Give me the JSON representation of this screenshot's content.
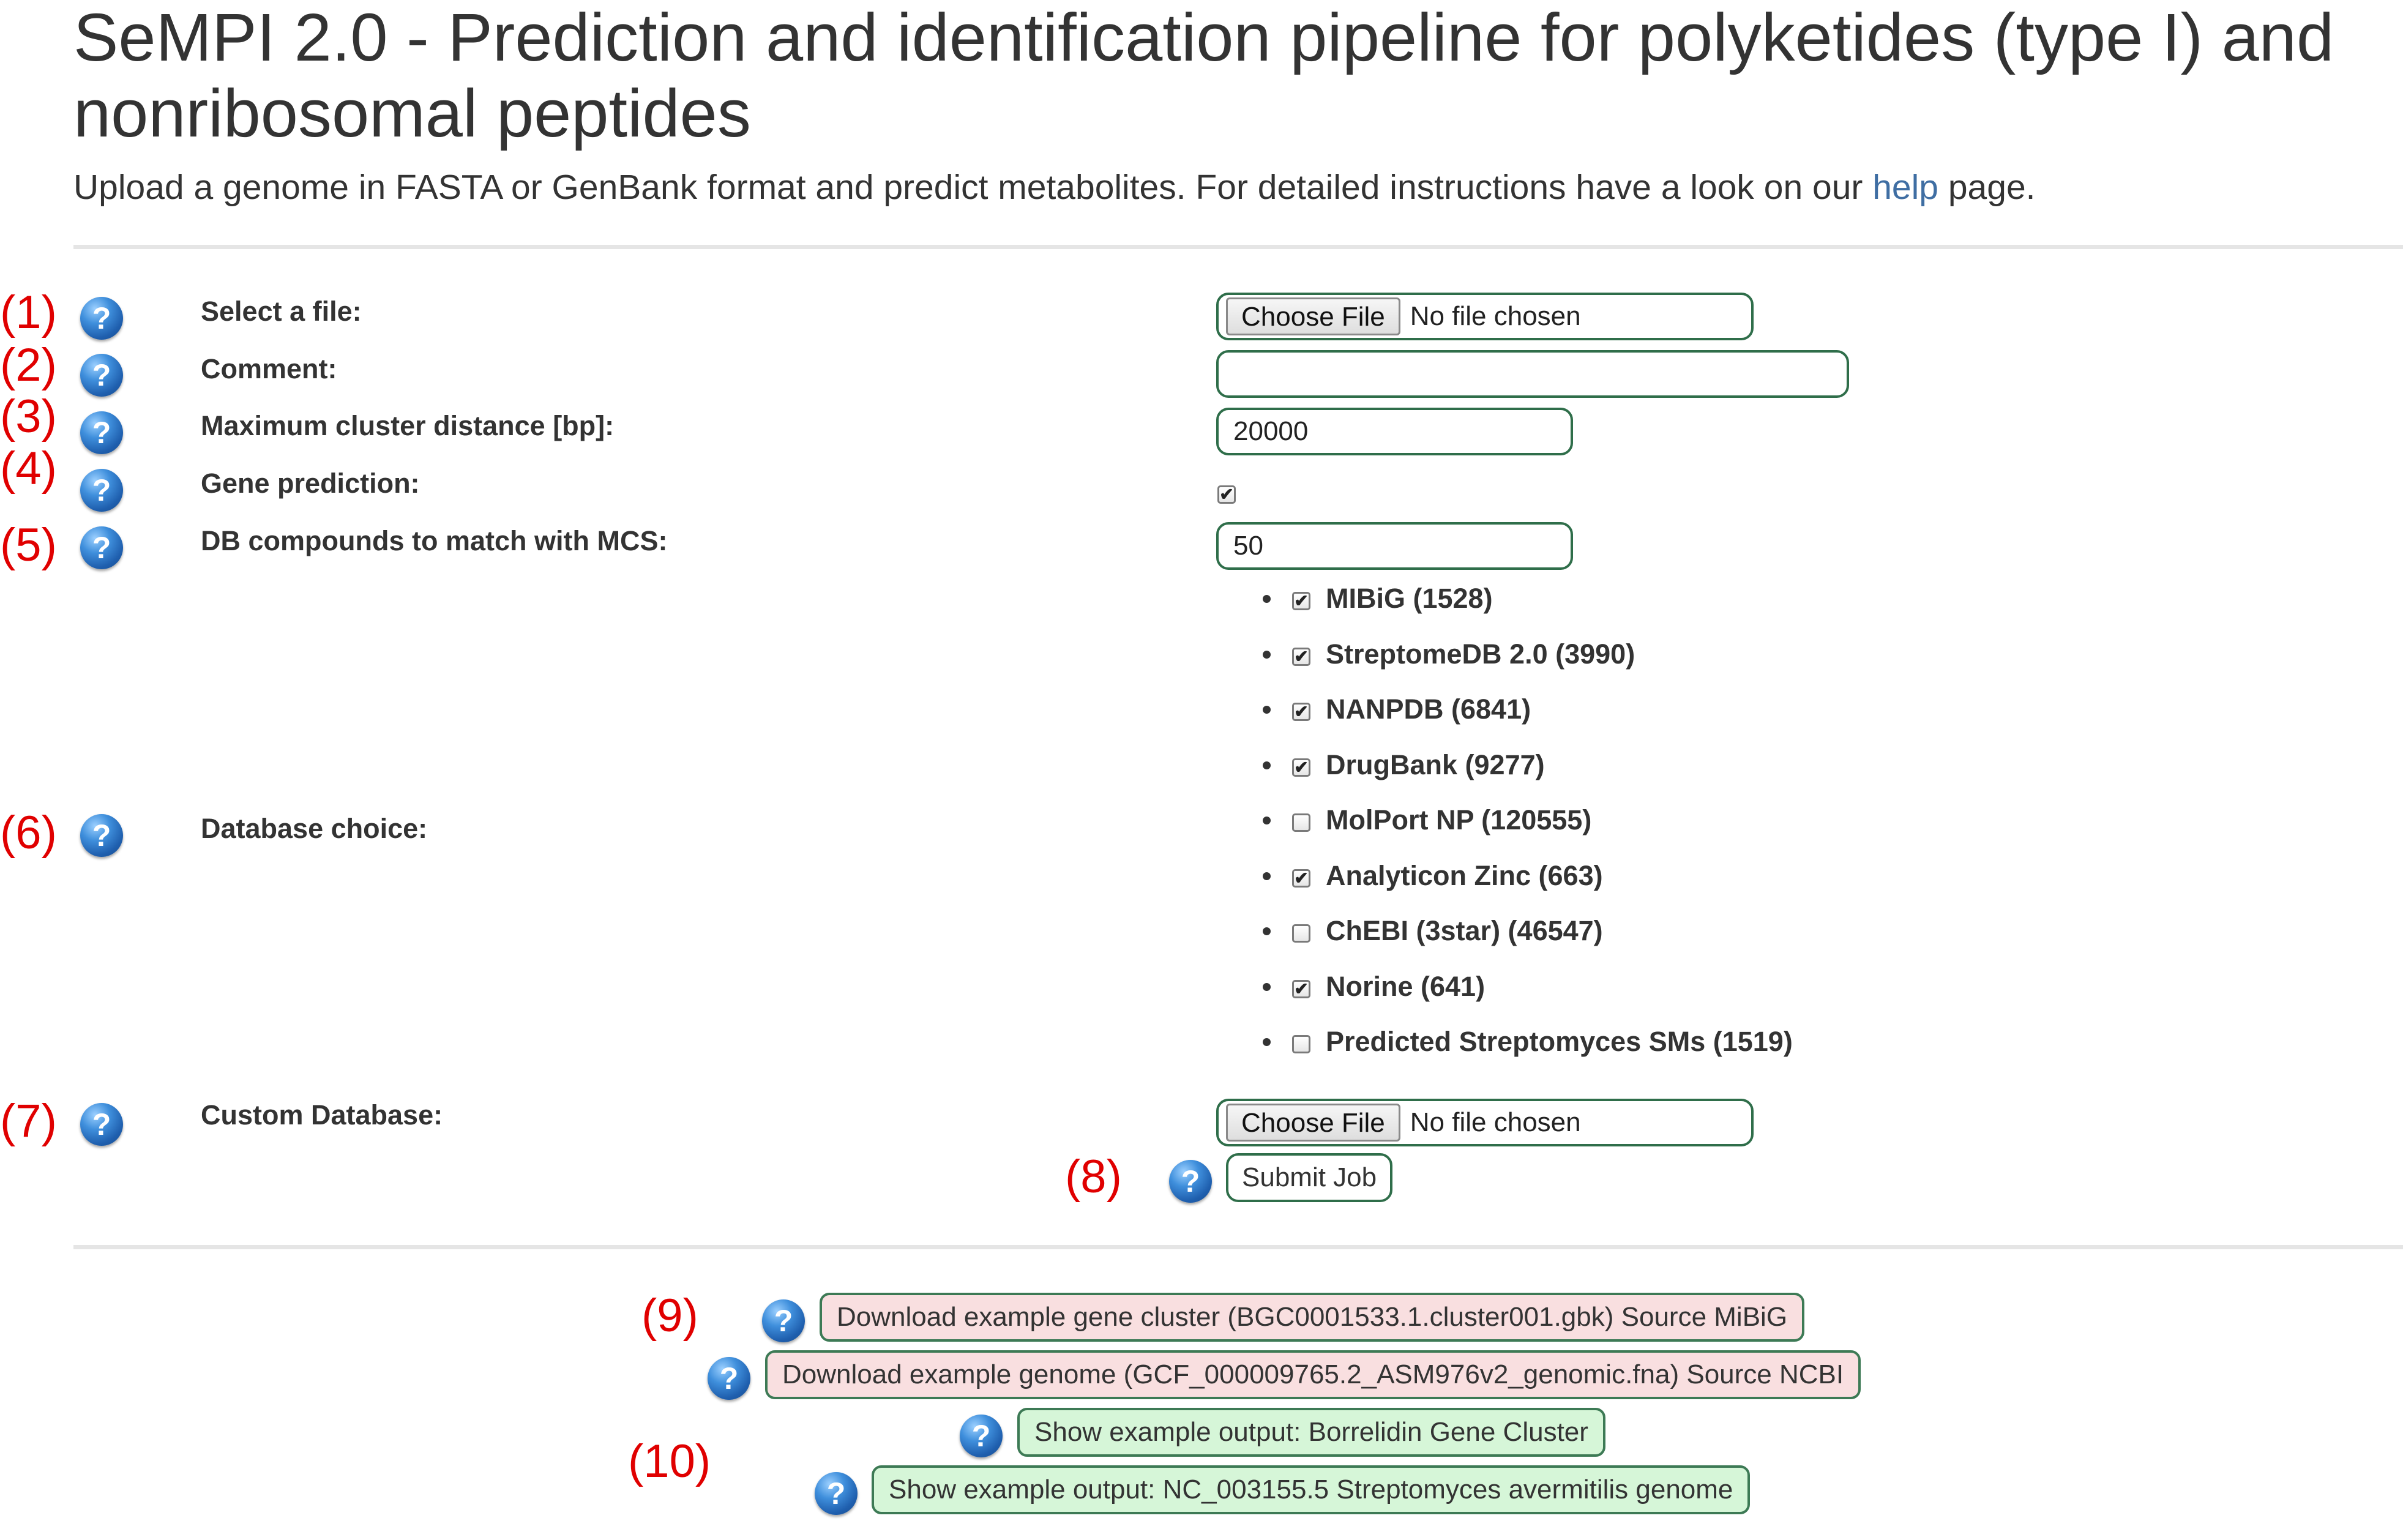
{
  "header": {
    "title": "SeMPI 2.0 - Prediction and identification pipeline for polyketides (type I) and nonribosomal peptides",
    "subtitle_before": "Upload a genome in FASTA or GenBank format and predict metabolites. For detailed instructions have a look on our ",
    "subtitle_link": "help",
    "subtitle_after": " page."
  },
  "form": {
    "file": {
      "number": "(1)",
      "label": "Select a file:",
      "button": "Choose File",
      "status": "No file chosen"
    },
    "comment": {
      "number": "(2)",
      "label": "Comment:",
      "value": ""
    },
    "distance": {
      "number": "(3)",
      "label": "Maximum cluster distance [bp]:",
      "value": "20000"
    },
    "gene": {
      "number": "(4)",
      "label": "Gene prediction:",
      "checked": true
    },
    "mcs": {
      "number": "(5)",
      "label": "DB compounds to match with MCS:",
      "value": "50"
    },
    "databases": {
      "number": "(6)",
      "label": "Database choice:",
      "items": [
        {
          "name": "MIBiG (1528)",
          "checked": true
        },
        {
          "name": "StreptomeDB 2.0 (3990)",
          "checked": true
        },
        {
          "name": "NANPDB (6841)",
          "checked": true
        },
        {
          "name": "DrugBank (9277)",
          "checked": true
        },
        {
          "name": "MolPort NP (120555)",
          "checked": false
        },
        {
          "name": "Analyticon Zinc (663)",
          "checked": true
        },
        {
          "name": "ChEBI (3star) (46547)",
          "checked": false
        },
        {
          "name": "Norine (641)",
          "checked": true
        },
        {
          "name": "Predicted Streptomyces SMs (1519)",
          "checked": false
        }
      ]
    },
    "custom": {
      "number": "(7)",
      "label": "Custom Database:",
      "button": "Choose File",
      "status": "No file chosen"
    },
    "submit": {
      "number": "(8)",
      "label": "Submit Job"
    }
  },
  "examples": {
    "number_download": "(9)",
    "number_show": "(10)",
    "download_cluster": "Download example gene cluster (BGC0001533.1.cluster001.gbk) Source MiBiG",
    "download_genome": "Download example genome (GCF_000009765.2_ASM976v2_genomic.fna) Source NCBI",
    "show_cluster": "Show example output: Borrelidin Gene Cluster",
    "show_genome": "Show example output: NC_003155.5 Streptomyces avermitilis genome"
  },
  "icons": {
    "help": "help-question-icon",
    "help_glyph": "?",
    "check_glyph": "✔",
    "accent": "#3f6ea3",
    "annotation_color": "#e00000"
  }
}
